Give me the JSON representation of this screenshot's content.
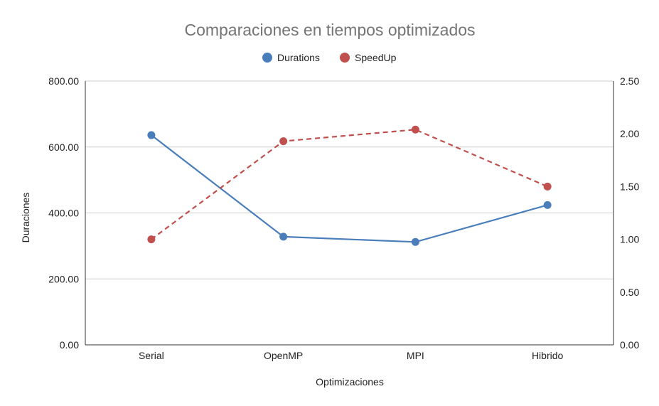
{
  "chart_data": {
    "type": "line",
    "title": "Comparaciones en tiempos optimizados",
    "xlabel": "Optimizaciones",
    "ylabel": "Duraciones",
    "y2label": "",
    "categories": [
      "Serial",
      "OpenMP",
      "MPI",
      "Hibrido"
    ],
    "ylim": [
      0,
      800
    ],
    "y2lim": [
      0,
      2.5
    ],
    "yticks": [
      "0.00",
      "200.00",
      "400.00",
      "600.00",
      "800.00"
    ],
    "y2ticks": [
      "0.00",
      "0.50",
      "1.00",
      "1.50",
      "2.00",
      "2.50"
    ],
    "grid": true,
    "legend_position": "top",
    "series": [
      {
        "name": "Durations",
        "axis": "left",
        "style": "solid",
        "color": "#4a7ebb",
        "values": [
          636,
          328,
          312,
          424
        ]
      },
      {
        "name": "SpeedUp",
        "axis": "right",
        "style": "dashed",
        "color": "#c0504d",
        "values": [
          1.0,
          1.93,
          2.04,
          1.5
        ]
      }
    ]
  }
}
